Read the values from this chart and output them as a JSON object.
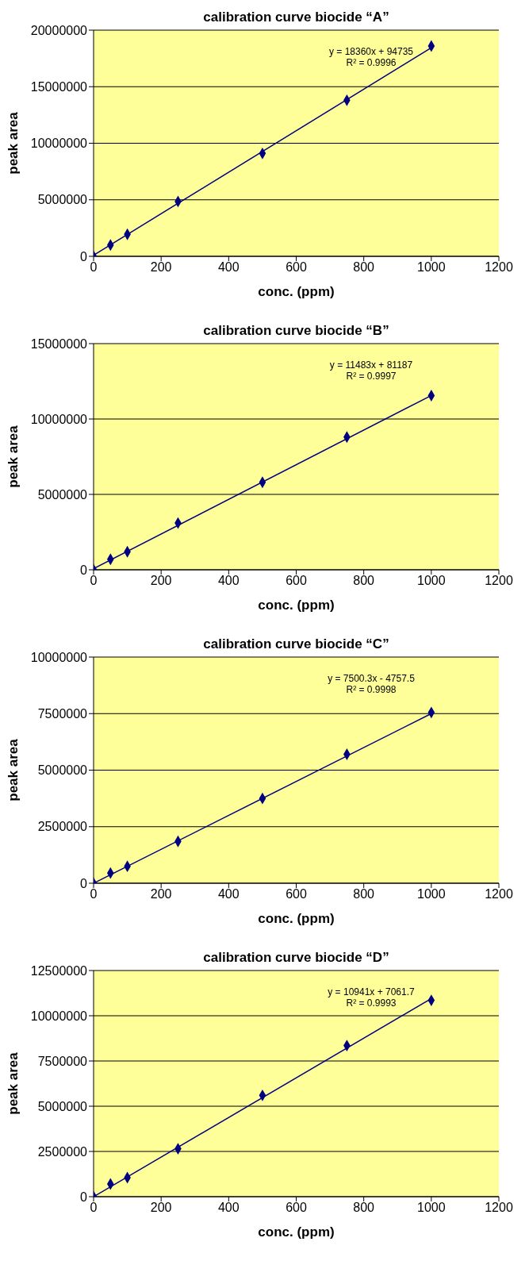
{
  "chart_data": [
    {
      "type": "scatter",
      "title": "calibration curve biocide “A”",
      "xlabel": "conc. (ppm)",
      "ylabel": "peak area",
      "xlim": [
        0,
        1200
      ],
      "xticks": [
        0,
        200,
        400,
        600,
        800,
        1000,
        1200
      ],
      "ylim": [
        0,
        20000000
      ],
      "yticks": [
        0,
        5000000,
        10000000,
        15000000,
        20000000
      ],
      "grid": "y",
      "annotations": [
        "y = 18360x + 94735",
        "R² = 0.9996"
      ],
      "series": [
        {
          "color": "#000080",
          "marker": "diamond",
          "x": [
            0,
            50,
            100,
            250,
            500,
            750,
            1000
          ],
          "values": [
            0,
            1000000,
            1950000,
            4850000,
            9100000,
            13800000,
            18600000
          ]
        },
        {
          "type": "line",
          "color": "#000080",
          "marker": "none",
          "x": [
            0,
            1000
          ],
          "values": [
            100000,
            18450000
          ]
        }
      ]
    },
    {
      "type": "scatter",
      "title": "calibration curve biocide “B”",
      "xlabel": "conc. (ppm)",
      "ylabel": "peak area",
      "xlim": [
        0,
        1200
      ],
      "xticks": [
        0,
        200,
        400,
        600,
        800,
        1000,
        1200
      ],
      "ylim": [
        0,
        15000000
      ],
      "yticks": [
        0,
        5000000,
        10000000,
        15000000
      ],
      "grid": "y",
      "annotations": [
        "y = 11483x + 81187",
        "R² = 0.9997"
      ],
      "series": [
        {
          "color": "#000080",
          "marker": "diamond",
          "x": [
            0,
            50,
            100,
            250,
            500,
            750,
            1000
          ],
          "values": [
            0,
            700000,
            1200000,
            3100000,
            5800000,
            8800000,
            11550000
          ]
        },
        {
          "type": "line",
          "color": "#000080",
          "marker": "none",
          "x": [
            0,
            1000
          ],
          "values": [
            80000,
            11560000
          ]
        }
      ]
    },
    {
      "type": "scatter",
      "title": "calibration curve biocide “C”",
      "xlabel": "conc. (ppm)",
      "ylabel": "peak area",
      "xlim": [
        0,
        1200
      ],
      "xticks": [
        0,
        200,
        400,
        600,
        800,
        1000,
        1200
      ],
      "ylim": [
        0,
        10000000
      ],
      "yticks": [
        0,
        2500000,
        5000000,
        7500000,
        10000000
      ],
      "grid": "y",
      "annotations": [
        "y = 7500.3x - 4757.5",
        "R² = 0.9998"
      ],
      "series": [
        {
          "color": "#000080",
          "marker": "diamond",
          "x": [
            0,
            50,
            100,
            250,
            500,
            750,
            1000
          ],
          "values": [
            0,
            450000,
            750000,
            1850000,
            3750000,
            5700000,
            7550000
          ]
        },
        {
          "type": "line",
          "color": "#000080",
          "marker": "none",
          "x": [
            0,
            1000
          ],
          "values": [
            0,
            7500000
          ]
        }
      ]
    },
    {
      "type": "scatter",
      "title": "calibration curve biocide “D”",
      "xlabel": "conc. (ppm)",
      "ylabel": "peak area",
      "xlim": [
        0,
        1200
      ],
      "xticks": [
        0,
        200,
        400,
        600,
        800,
        1000,
        1200
      ],
      "ylim": [
        0,
        12500000
      ],
      "yticks": [
        0,
        2500000,
        5000000,
        7500000,
        10000000,
        12500000
      ],
      "grid": "y",
      "annotations": [
        "y = 10941x + 7061.7",
        "R² = 0.9993"
      ],
      "series": [
        {
          "color": "#000080",
          "marker": "diamond",
          "x": [
            0,
            50,
            100,
            250,
            500,
            750,
            1000
          ],
          "values": [
            0,
            700000,
            1050000,
            2650000,
            5600000,
            8350000,
            10850000
          ]
        },
        {
          "type": "line",
          "color": "#000080",
          "marker": "none",
          "x": [
            0,
            1000
          ],
          "values": [
            0,
            10950000
          ]
        }
      ]
    }
  ]
}
